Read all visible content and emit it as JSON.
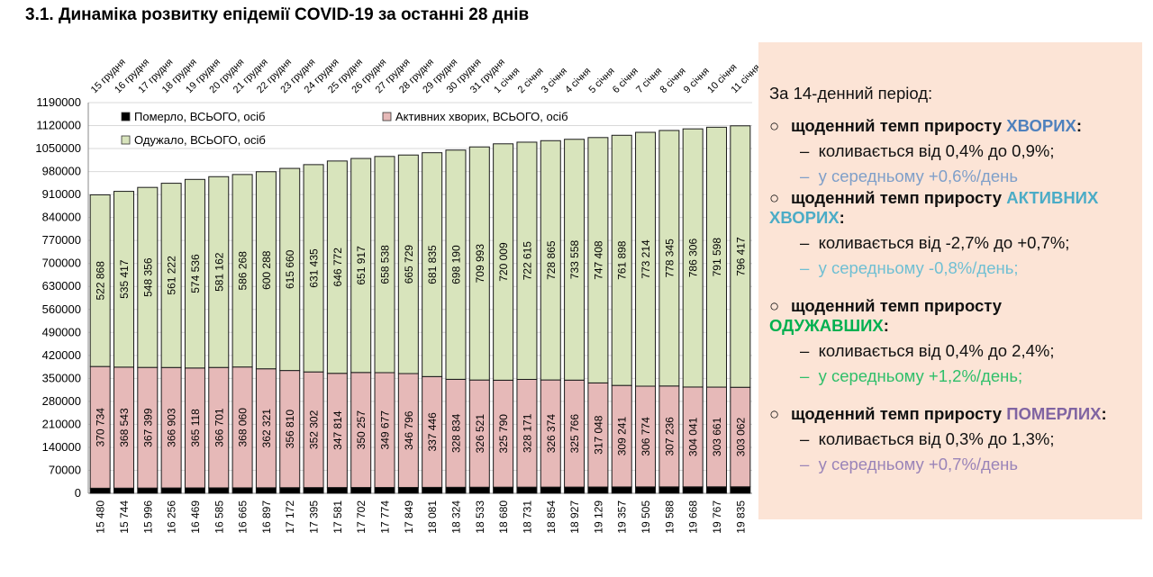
{
  "title": "3.1.  Динаміка розвитку епідемії COVID-19 за останні 28 днів",
  "chart_data": {
    "type": "bar",
    "stacked": true,
    "categories": [
      "15 грудня",
      "16 грудня",
      "17 грудня",
      "18 грудня",
      "19 грудня",
      "20 грудня",
      "21 грудня",
      "22 грудня",
      "23 грудня",
      "24 грудня",
      "25 грудня",
      "26 грудня",
      "27 грудня",
      "28 грудня",
      "29 грудня",
      "30 грудня",
      "31 грудня",
      "1 січня",
      "2 січня",
      "3 січня",
      "4 січня",
      "5 січня",
      "6 січня",
      "7 січня",
      "8 січня",
      "9 січня",
      "10 січня",
      "11 січня"
    ],
    "ylim": [
      0,
      1190000
    ],
    "yticks": [
      0,
      70000,
      140000,
      210000,
      280000,
      350000,
      420000,
      490000,
      560000,
      630000,
      700000,
      770000,
      840000,
      910000,
      980000,
      1050000,
      1120000,
      1190000
    ],
    "grid": true,
    "legend": "top-left inside",
    "series": [
      {
        "name": "Померло, ВСЬОГО, осіб",
        "color": "#000000",
        "values": [
          15480,
          15744,
          15996,
          16256,
          16469,
          16585,
          16665,
          16897,
          17172,
          17395,
          17581,
          17702,
          17774,
          17849,
          18081,
          18324,
          18533,
          18680,
          18731,
          18854,
          18927,
          19129,
          19357,
          19505,
          19588,
          19668,
          19767,
          19835
        ],
        "labels": [
          "15 480",
          "15 744",
          "15 996",
          "16 256",
          "16 469",
          "16 585",
          "16 665",
          "16 897",
          "17 172",
          "17 395",
          "17 581",
          "17 702",
          "17 774",
          "17 849",
          "18 081",
          "18 324",
          "18 533",
          "18 680",
          "18 731",
          "18 854",
          "18 927",
          "19 129",
          "19 357",
          "19 505",
          "19 588",
          "19 668",
          "19 767",
          "19 835"
        ]
      },
      {
        "name": "Активних хворих, ВСЬОГО, осіб",
        "color": "#e6b9b8",
        "values": [
          370734,
          368543,
          367399,
          366903,
          365118,
          366701,
          368060,
          362321,
          356810,
          352302,
          347814,
          350257,
          349677,
          346796,
          337446,
          328834,
          326521,
          325790,
          328171,
          326374,
          325766,
          317048,
          309241,
          306774,
          307236,
          304041,
          303661,
          303062
        ],
        "labels": [
          "370 734",
          "368 543",
          "367 399",
          "366 903",
          "365 118",
          "366 701",
          "368 060",
          "362 321",
          "356 810",
          "352 302",
          "347 814",
          "350 257",
          "349 677",
          "346 796",
          "337 446",
          "328 834",
          "326 521",
          "325 790",
          "328 171",
          "326 374",
          "325 766",
          "317 048",
          "309 241",
          "306 774",
          "307 236",
          "304 041",
          "303 661",
          "303 062"
        ]
      },
      {
        "name": "Одужало, ВСЬОГО, осіб",
        "color": "#d8e4bc",
        "values": [
          522868,
          535417,
          548356,
          561222,
          574536,
          581162,
          586268,
          600288,
          615660,
          631435,
          646772,
          651917,
          658538,
          665729,
          681835,
          698190,
          709993,
          720009,
          722615,
          728865,
          733558,
          747408,
          761898,
          773214,
          778345,
          786306,
          791598,
          796417
        ],
        "labels": [
          "522 868",
          "535 417",
          "548 356",
          "561 222",
          "574 536",
          "581 162",
          "586 268",
          "600 288",
          "615 660",
          "631 435",
          "646 772",
          "651 917",
          "658 538",
          "665 729",
          "681 835",
          "698 190",
          "709 993",
          "720 009",
          "722 615",
          "728 865",
          "733 558",
          "747 408",
          "761 898",
          "773 214",
          "778 345",
          "786 306",
          "791 598",
          "796 417"
        ]
      }
    ]
  },
  "panel": {
    "heading": "За 14-денний період:",
    "sections": [
      {
        "prefix": "щоденний темп приросту ",
        "highlight": "ХВОРИХ",
        "suffix": ":",
        "color": "#4f81bd",
        "range": "коливається від 0,4% до 0,9%;",
        "avg": "у середньому +0,6%/день",
        "avg_color": "#7f9fc9"
      },
      {
        "prefix": "щоденний темп приросту ",
        "highlight": "АКТИВНИХ ХВОРИХ",
        "suffix": ":",
        "color": "#4bacc6",
        "range": "коливається від -2,7% до +0,7%;",
        "avg": "у середньому -0,8%/день;",
        "avg_color": "#6fbfd3"
      },
      {
        "prefix": "щоденний темп приросту ",
        "highlight": "ОДУЖАВШИХ",
        "suffix": ":",
        "color": "#00b050",
        "range": "коливається від 0,4% до 2,4%;",
        "avg": "у середньому +1,2%/день;",
        "avg_color": "#2fbf6a"
      },
      {
        "prefix": "щоденний темп приросту ",
        "highlight": "ПОМЕРЛИХ",
        "suffix": ":",
        "color": "#8064a2",
        "range": "коливається від 0,3% до 1,3%;",
        "avg": "у середньому +0,7%/день",
        "avg_color": "#9a84b8"
      }
    ],
    "bullet": "○",
    "dash": "–"
  }
}
